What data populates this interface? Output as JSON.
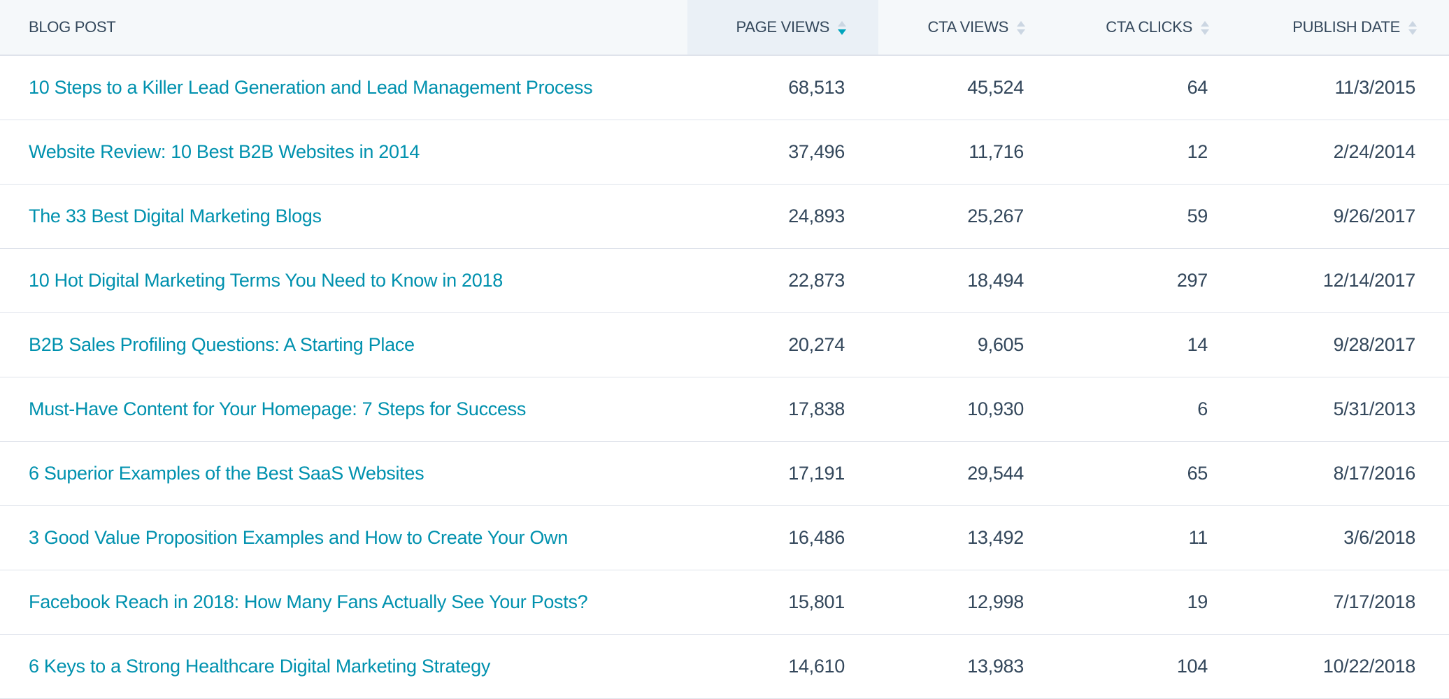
{
  "columns": [
    {
      "label": "BLOG POST"
    },
    {
      "label": "PAGE VIEWS",
      "sort": "descending"
    },
    {
      "label": "CTA VIEWS"
    },
    {
      "label": "CTA CLICKS"
    },
    {
      "label": "PUBLISH DATE"
    }
  ],
  "colors": {
    "link": "#0091ae",
    "text": "#33475b",
    "sort_active": "#00a4bd",
    "header_bg": "#f5f8fa",
    "sorted_header_bg": "#eaf0f6"
  },
  "rows": [
    {
      "title": "10 Steps to a Killer Lead Generation and Lead Management Process",
      "page_views": "68,513",
      "cta_views": "45,524",
      "cta_clicks": "64",
      "publish_date": "11/3/2015"
    },
    {
      "title": "Website Review: 10 Best B2B Websites in 2014",
      "page_views": "37,496",
      "cta_views": "11,716",
      "cta_clicks": "12",
      "publish_date": "2/24/2014"
    },
    {
      "title": "The 33 Best Digital Marketing Blogs",
      "page_views": "24,893",
      "cta_views": "25,267",
      "cta_clicks": "59",
      "publish_date": "9/26/2017"
    },
    {
      "title": "10 Hot Digital Marketing Terms You Need to Know in 2018",
      "page_views": "22,873",
      "cta_views": "18,494",
      "cta_clicks": "297",
      "publish_date": "12/14/2017"
    },
    {
      "title": "B2B Sales Profiling Questions: A Starting Place",
      "page_views": "20,274",
      "cta_views": "9,605",
      "cta_clicks": "14",
      "publish_date": "9/28/2017"
    },
    {
      "title": "Must-Have Content for Your Homepage: 7 Steps for Success",
      "page_views": "17,838",
      "cta_views": "10,930",
      "cta_clicks": "6",
      "publish_date": "5/31/2013"
    },
    {
      "title": "6 Superior Examples of the Best SaaS Websites",
      "page_views": "17,191",
      "cta_views": "29,544",
      "cta_clicks": "65",
      "publish_date": "8/17/2016"
    },
    {
      "title": "3 Good Value Proposition Examples and How to Create Your Own",
      "page_views": "16,486",
      "cta_views": "13,492",
      "cta_clicks": "11",
      "publish_date": "3/6/2018"
    },
    {
      "title": "Facebook Reach in 2018: How Many Fans Actually See Your Posts?",
      "page_views": "15,801",
      "cta_views": "12,998",
      "cta_clicks": "19",
      "publish_date": "7/17/2018"
    },
    {
      "title": "6 Keys to a Strong Healthcare Digital Marketing Strategy",
      "page_views": "14,610",
      "cta_views": "13,983",
      "cta_clicks": "104",
      "publish_date": "10/22/2018"
    }
  ]
}
